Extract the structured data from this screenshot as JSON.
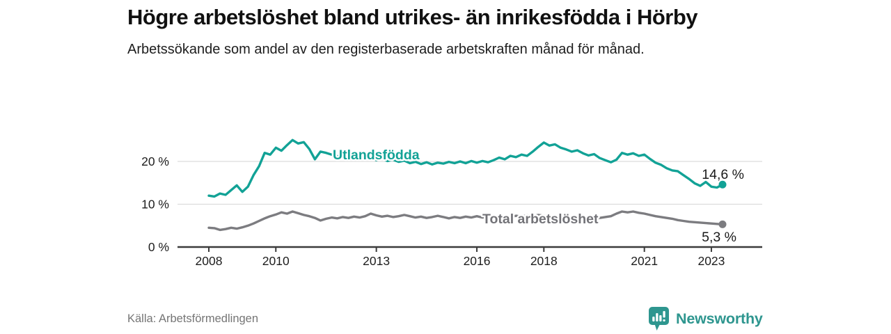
{
  "header": {
    "title": "Högre arbetslöshet bland utrikes- än inrikesfödda i Hörby",
    "subtitle": "Arbetssökande som andel av den registerbaserade arbetskraften månad för månad."
  },
  "footer": {
    "source": "Källa: Arbetsförmedlingen",
    "logo_text": "Newsworthy",
    "logo_icon": "bar-chart-speech-bubble-icon",
    "logo_color": "#2e968f"
  },
  "chart_data": {
    "type": "line",
    "title": "Högre arbetslöshet bland utrikes- än inrikesfödda i Hörby",
    "xlabel": "",
    "ylabel": "",
    "x_unit": "decimal_year",
    "x_start_year": 2008,
    "x_step": 0.1666667,
    "x_ticks": [
      2008,
      2010,
      2013,
      2016,
      2018,
      2021,
      2023
    ],
    "y_ticks": [
      0,
      10,
      20
    ],
    "y_tick_suffix": " %",
    "y_gridlines": [
      10,
      20
    ],
    "ylim": [
      0,
      27
    ],
    "xlim": [
      2007.05,
      2023.9
    ],
    "grid": "horizontal-only",
    "legend_position": "inline-labels",
    "colors": {
      "accent_teal": "#12a296",
      "series_gray": "#7c7c80",
      "gray_label": "#737378",
      "axis": "#3b3b3b",
      "grid": "#dcdcdc",
      "value_label": "#1a1a1a"
    },
    "series": [
      {
        "id": "utlandsfodda",
        "label": "Utlandsfödda",
        "color": "#12a296",
        "end_label": "14,6 %",
        "end_value": 14.6,
        "values": [
          12.0,
          11.8,
          12.5,
          12.2,
          13.3,
          14.4,
          12.9,
          14.1,
          16.8,
          18.9,
          22.0,
          21.6,
          23.2,
          22.5,
          23.8,
          25.0,
          24.2,
          24.5,
          22.9,
          20.5,
          22.3,
          22.0,
          21.6,
          21.2,
          21.5,
          21.0,
          20.6,
          21.0,
          20.5,
          20.8,
          20.3,
          20.6,
          20.1,
          20.4,
          19.9,
          20.2,
          19.6,
          19.9,
          19.4,
          19.8,
          19.3,
          19.7,
          19.5,
          19.9,
          19.6,
          20.0,
          19.6,
          20.1,
          19.7,
          20.1,
          19.8,
          20.3,
          20.9,
          20.5,
          21.3,
          21.0,
          21.6,
          21.3,
          22.3,
          23.4,
          24.4,
          23.7,
          24.0,
          23.2,
          22.8,
          22.3,
          22.6,
          21.9,
          21.4,
          21.7,
          20.8,
          20.3,
          19.8,
          20.4,
          22.0,
          21.6,
          21.9,
          21.3,
          21.6,
          20.6,
          19.7,
          19.2,
          18.4,
          17.9,
          17.7,
          16.8,
          15.9,
          14.9,
          14.3,
          15.2,
          14.1,
          13.9,
          14.6
        ]
      },
      {
        "id": "total",
        "label": "Total arbetslöshet",
        "color": "#7c7c80",
        "label_color": "#737378",
        "end_label": "5,3 %",
        "end_value": 5.3,
        "values": [
          4.5,
          4.4,
          4.0,
          4.2,
          4.5,
          4.3,
          4.6,
          5.0,
          5.5,
          6.1,
          6.7,
          7.2,
          7.6,
          8.1,
          7.8,
          8.3,
          7.9,
          7.5,
          7.2,
          6.8,
          6.2,
          6.6,
          6.9,
          6.7,
          7.0,
          6.8,
          7.1,
          6.9,
          7.2,
          7.8,
          7.4,
          7.1,
          7.3,
          7.0,
          7.2,
          7.5,
          7.2,
          6.9,
          7.1,
          6.8,
          7.0,
          7.3,
          7.0,
          6.7,
          7.0,
          6.8,
          7.1,
          6.9,
          7.2,
          6.9,
          7.1,
          6.8,
          7.0,
          7.2,
          7.0,
          7.3,
          7.1,
          7.4,
          7.2,
          7.5,
          7.3,
          7.0,
          7.2,
          6.9,
          7.1,
          6.8,
          7.0,
          6.7,
          6.9,
          6.6,
          6.8,
          7.0,
          7.2,
          7.8,
          8.3,
          8.1,
          8.3,
          8.0,
          7.8,
          7.5,
          7.2,
          7.0,
          6.8,
          6.6,
          6.3,
          6.1,
          5.9,
          5.8,
          5.7,
          5.6,
          5.5,
          5.4,
          5.3
        ]
      }
    ]
  }
}
